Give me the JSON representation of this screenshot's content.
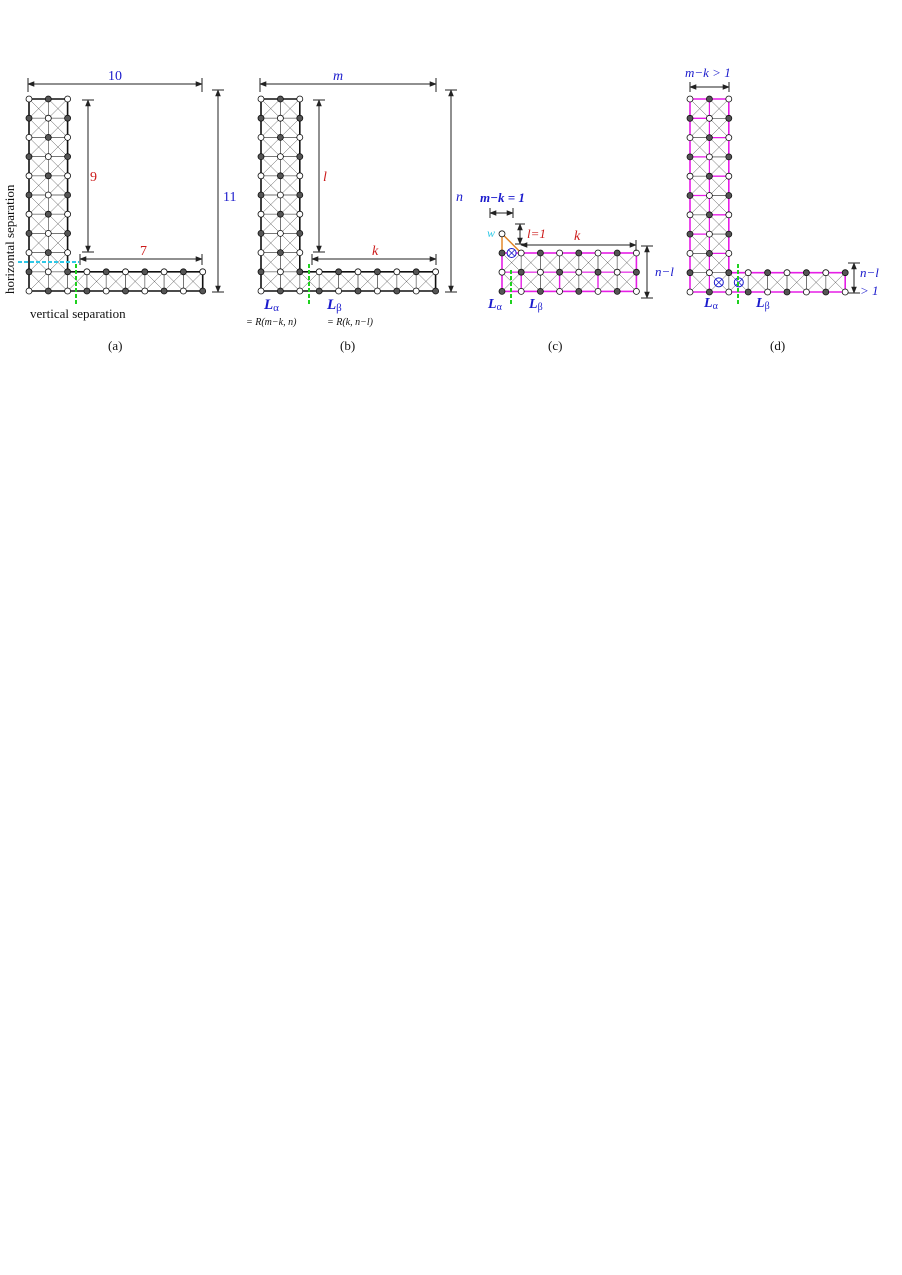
{
  "panels": {
    "a": {
      "caption": "(a)",
      "width_label": "10",
      "height_label": "11",
      "arm_height_label": "9",
      "arm_width_label": "7",
      "h_sep_label": "horizontal separation",
      "v_sep_label": "vertical separation"
    },
    "b": {
      "caption": "(b)",
      "width_label": "m",
      "height_label": "n",
      "arm_height_label": "l",
      "arm_width_label": "k",
      "l_alpha_main": "L",
      "l_alpha_sub": "α",
      "l_beta_main": "L",
      "l_beta_sub": "β",
      "l_alpha_def": "= R(m−k, n)",
      "l_beta_def": "= R(k, n−l)"
    },
    "c": {
      "caption": "(c)",
      "mk_label": "m−k = 1",
      "l_label": "l=1",
      "k_label": "k",
      "nl_label": "n−l",
      "w_label": "w",
      "l_alpha_main": "L",
      "l_alpha_sub": "α",
      "l_beta_main": "L",
      "l_beta_sub": "β"
    },
    "d": {
      "caption": "(d)",
      "mk_label": "m−k > 1",
      "nl_label_1": "n−l",
      "nl_label_2": "> 1",
      "l_alpha_main": "L",
      "l_alpha_sub": "α",
      "l_beta_main": "L",
      "l_beta_sub": "β"
    }
  },
  "colors": {
    "label_blue": "#1a1acc",
    "label_red": "#cc1a1a",
    "separator_green": "#1fd11f",
    "separator_cyan": "#2ec8e6",
    "path_magenta": "#e61ee6",
    "orange": "#e08020",
    "grid": "#555555",
    "outline": "#111111"
  }
}
